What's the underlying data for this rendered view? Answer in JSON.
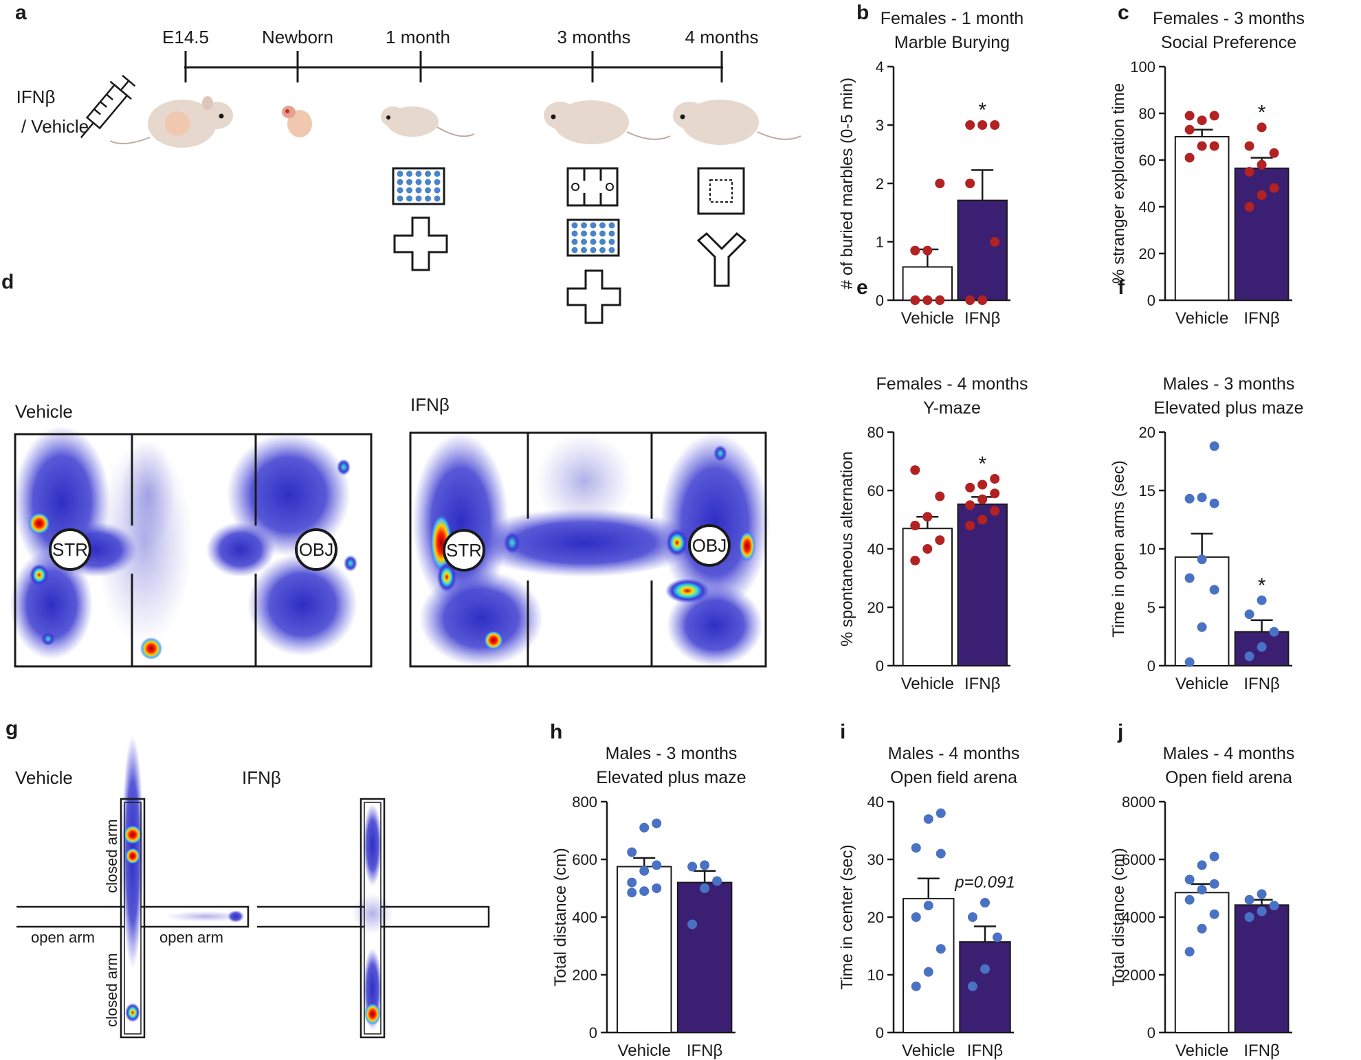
{
  "panel_letters": {
    "a": "a",
    "b": "b",
    "c": "c",
    "d": "d",
    "e": "e",
    "f": "f",
    "g": "g",
    "h": "h",
    "i": "i",
    "j": "j"
  },
  "colors": {
    "vehicle_bar": "#ffffff",
    "ifnb_bar": "#3b1f73",
    "female_point": "#b22222",
    "male_point": "#4a72c4",
    "axis": "#1a1a1a"
  },
  "timeline": {
    "injection_label_line1": "IFNβ",
    "injection_label_line2": "/ Vehicle",
    "labels": [
      "E14.5",
      "Newborn",
      "1 month",
      "3 months",
      "4 months"
    ],
    "icons": [
      "mouse-pregnant",
      "mouse-newborn",
      "mouse-1-month",
      "mouse-3-months",
      "mouse-4-months",
      "syringe"
    ],
    "tests": {
      "1 month": [
        "marble-burying",
        "elevated-plus-maze"
      ],
      "3 months": [
        "social-preference",
        "marble-burying",
        "elevated-plus-maze"
      ],
      "4 months": [
        "open-field",
        "y-maze"
      ]
    }
  },
  "heatmap_d": {
    "vehicle_label": "Vehicle",
    "ifnb_label": "IFNβ",
    "str_label": "STR",
    "obj_label": "OBJ"
  },
  "heatmap_g": {
    "vehicle_label": "Vehicle",
    "ifnb_label": "IFNβ",
    "closed_arm": "closed arm",
    "open_arm": "open arm"
  },
  "chart_data": [
    {
      "id": "b",
      "type": "bar",
      "title": [
        "Females - 1 month",
        "Marble Burying"
      ],
      "ylabel": "# of buried marbles (0-5 min)",
      "ylim": [
        0,
        4
      ],
      "yticks": [
        0,
        1,
        2,
        3,
        4
      ],
      "categories": [
        "Vehicle",
        "IFNβ"
      ],
      "values": [
        0.57,
        1.71
      ],
      "errors": [
        0.3,
        0.52
      ],
      "points": [
        [
          0,
          0,
          0,
          0.85,
          0.85,
          2
        ],
        [
          0,
          0,
          1,
          2,
          3,
          3,
          3
        ]
      ],
      "point_color": "female",
      "annotation": "*"
    },
    {
      "id": "c",
      "type": "bar",
      "title": [
        "Females - 3 months",
        "Social Preference"
      ],
      "ylabel": "% stranger exploration time",
      "ylim": [
        0,
        100
      ],
      "yticks": [
        0,
        20,
        40,
        60,
        80,
        100
      ],
      "categories": [
        "Vehicle",
        "IFNβ"
      ],
      "values": [
        70,
        56.5
      ],
      "errors": [
        3,
        4.5
      ],
      "points": [
        [
          61,
          66,
          66,
          73,
          77,
          79,
          79
        ],
        [
          40,
          45,
          48,
          55,
          58,
          63,
          66,
          74
        ]
      ],
      "point_color": "female",
      "annotation": "*"
    },
    {
      "id": "e",
      "type": "bar",
      "title": [
        "Females - 4 months",
        "Y-maze"
      ],
      "ylabel": "% spontaneous alternation",
      "ylim": [
        0,
        80
      ],
      "yticks": [
        0,
        20,
        40,
        60,
        80
      ],
      "categories": [
        "Vehicle",
        "IFNβ"
      ],
      "values": [
        47,
        55.3
      ],
      "errors": [
        4,
        2.5
      ],
      "points": [
        [
          36,
          40,
          43,
          48,
          51,
          58,
          67
        ],
        [
          48,
          50,
          53,
          55,
          57,
          59,
          61,
          62,
          64
        ]
      ],
      "point_color": "female",
      "annotation": "*"
    },
    {
      "id": "f",
      "type": "bar",
      "title": [
        "Males - 3 months",
        "Elevated plus maze"
      ],
      "ylabel": "Time in open arms (sec)",
      "ylim": [
        0,
        20
      ],
      "yticks": [
        0,
        5,
        10,
        15,
        20
      ],
      "categories": [
        "Vehicle",
        "IFNβ"
      ],
      "values": [
        9.3,
        2.9
      ],
      "errors": [
        2,
        1
      ],
      "points": [
        [
          0.3,
          3.3,
          6.5,
          7.5,
          9.1,
          13.9,
          14.3,
          14.4,
          18.8
        ],
        [
          0.8,
          1.6,
          2.9,
          4.4,
          5.6
        ]
      ],
      "point_color": "male",
      "annotation": "*"
    },
    {
      "id": "h",
      "type": "bar",
      "title": [
        "Males - 3 months",
        "Elevated plus maze"
      ],
      "ylabel": "Total distance (cm)",
      "ylim": [
        0,
        800
      ],
      "yticks": [
        0,
        200,
        400,
        600,
        800
      ],
      "categories": [
        "Vehicle",
        "IFNβ"
      ],
      "values": [
        575,
        520
      ],
      "errors": [
        30,
        40
      ],
      "points": [
        [
          485,
          490,
          500,
          520,
          560,
          580,
          625,
          710,
          725
        ],
        [
          375,
          500,
          525,
          575,
          580
        ]
      ],
      "point_color": "male",
      "annotation": ""
    },
    {
      "id": "i",
      "type": "bar",
      "title": [
        "Males - 4 months",
        "Open field arena"
      ],
      "ylabel": "Time in center (sec)",
      "ylim": [
        0,
        40
      ],
      "yticks": [
        0,
        10,
        20,
        30,
        40
      ],
      "categories": [
        "Vehicle",
        "IFNβ"
      ],
      "values": [
        23.2,
        15.7
      ],
      "errors": [
        3.5,
        2.7
      ],
      "points": [
        [
          8,
          10.5,
          14.5,
          20,
          22,
          31,
          32,
          37,
          38
        ],
        [
          8,
          11,
          16.5,
          20,
          22.5
        ]
      ],
      "point_color": "male",
      "annotation": "p=0.091"
    },
    {
      "id": "j",
      "type": "bar",
      "title": [
        "Males - 4 months",
        "Open field arena"
      ],
      "ylabel": "Total distance (cm)",
      "ylim": [
        0,
        8000
      ],
      "yticks": [
        0,
        2000,
        4000,
        6000,
        8000
      ],
      "categories": [
        "Vehicle",
        "IFNβ"
      ],
      "values": [
        4850,
        4420
      ],
      "errors": [
        300,
        180
      ],
      "points": [
        [
          2800,
          3600,
          4100,
          4600,
          4950,
          5150,
          5300,
          5800,
          6100
        ],
        [
          4000,
          4200,
          4400,
          4600,
          4800
        ]
      ],
      "point_color": "male",
      "annotation": ""
    }
  ]
}
